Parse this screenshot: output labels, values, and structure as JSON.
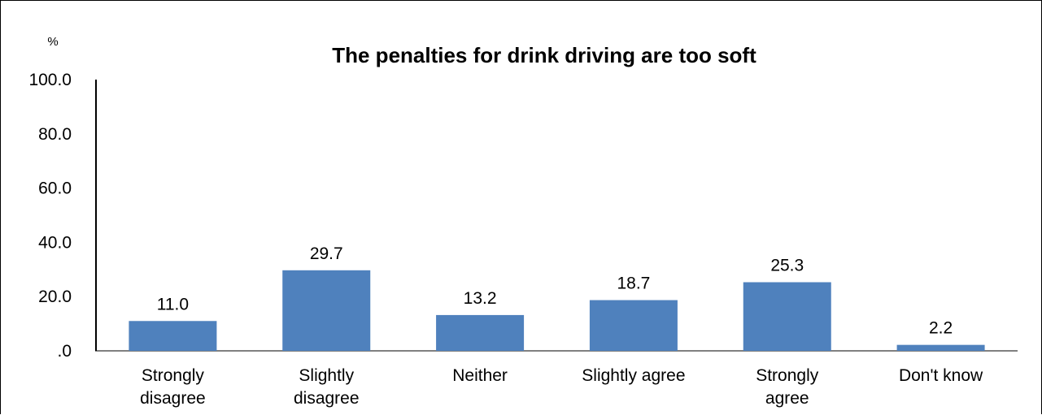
{
  "chart_data": {
    "type": "bar",
    "title": "The penalties for drink driving are too soft",
    "ylabel": "%",
    "xlabel": "",
    "categories": [
      [
        "Strongly",
        "disagree"
      ],
      [
        "Slightly",
        "disagree"
      ],
      [
        "Neither"
      ],
      [
        "Slightly agree"
      ],
      [
        "Strongly",
        "agree"
      ],
      [
        "Don't know"
      ]
    ],
    "values": [
      11.0,
      29.7,
      13.2,
      18.7,
      25.3,
      2.2
    ],
    "data_labels": [
      "11.0",
      "29.7",
      "13.2",
      "18.7",
      "25.3",
      "2.2"
    ],
    "ylim": [
      0,
      100
    ],
    "yticks": [
      0,
      20,
      40,
      60,
      80,
      100
    ],
    "ytick_labels": [
      ".0",
      "20.0",
      "40.0",
      "60.0",
      "80.0",
      "100.0"
    ],
    "bar_color": "#4f81bd",
    "grid": false,
    "legend": "none"
  }
}
